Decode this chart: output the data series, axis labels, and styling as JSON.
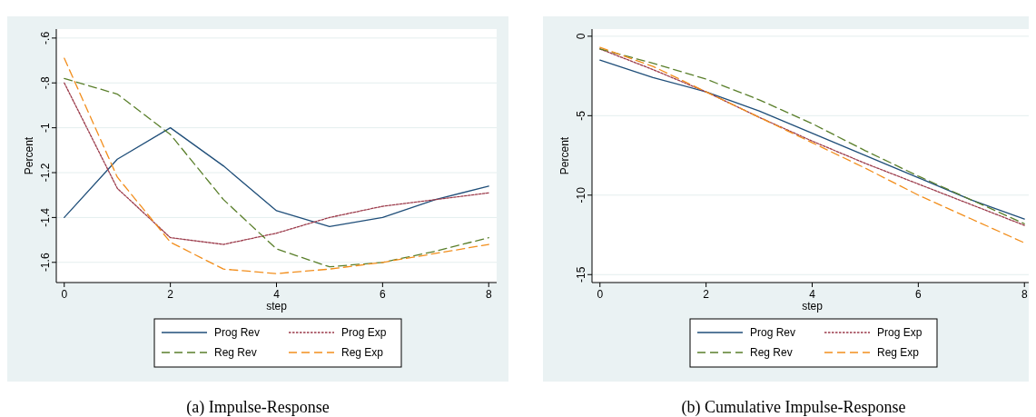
{
  "chart_data": [
    {
      "type": "line",
      "title": "(a) Impulse-Response",
      "xlabel": "step",
      "ylabel": "Percent",
      "x": [
        0,
        1,
        2,
        3,
        4,
        5,
        6,
        7,
        8
      ],
      "xlim": [
        -0.15,
        8.15
      ],
      "xticks": [
        0,
        2,
        4,
        6,
        8
      ],
      "ylim": [
        -1.69,
        -0.56
      ],
      "yticks": [
        {
          "value": -1.6,
          "label": "-1.6"
        },
        {
          "value": -1.4,
          "label": "-1.4"
        },
        {
          "value": -1.2,
          "label": "-1.2"
        },
        {
          "value": -1,
          "label": "-1"
        },
        {
          "value": -0.8,
          "label": "-.8"
        },
        {
          "value": -0.6,
          "label": "-.6"
        }
      ],
      "grid": "y",
      "legend": "bottom",
      "series": [
        {
          "name": "Prog Rev",
          "color": "#1f4e79",
          "line_style": "solid",
          "values": [
            -1.4,
            -1.14,
            -1.0,
            -1.17,
            -1.37,
            -1.44,
            -1.4,
            -1.32,
            -1.26
          ]
        },
        {
          "name": "Prog Exp",
          "color": "#9b3a4a",
          "line_style": "dotted",
          "values": [
            -0.8,
            -1.27,
            -1.49,
            -1.52,
            -1.47,
            -1.4,
            -1.35,
            -1.32,
            -1.29
          ]
        },
        {
          "name": "Reg Rev",
          "color": "#5a7f2b",
          "line_style": "dashed",
          "values": [
            -0.78,
            -0.85,
            -1.03,
            -1.32,
            -1.54,
            -1.62,
            -1.6,
            -1.55,
            -1.49
          ]
        },
        {
          "name": "Reg Exp",
          "color": "#f28e1c",
          "line_style": "dashed",
          "values": [
            -0.69,
            -1.22,
            -1.51,
            -1.63,
            -1.65,
            -1.63,
            -1.6,
            -1.56,
            -1.52
          ]
        }
      ]
    },
    {
      "type": "line",
      "title": "(b) Cumulative Impulse-Response",
      "xlabel": "step",
      "ylabel": "Percent",
      "x": [
        0,
        1,
        2,
        3,
        4,
        5,
        6,
        7,
        8
      ],
      "xlim": [
        -0.15,
        8.15
      ],
      "xticks": [
        0,
        2,
        4,
        6,
        8
      ],
      "ylim": [
        -15.5,
        0.45
      ],
      "yticks": [
        {
          "value": -15,
          "label": "-15"
        },
        {
          "value": -10,
          "label": "-10"
        },
        {
          "value": -5,
          "label": "-5"
        },
        0
      ],
      "grid": "y",
      "legend": "bottom",
      "series": [
        {
          "name": "Prog Rev",
          "color": "#1f4e79",
          "line_style": "solid",
          "values": [
            -1.5,
            -2.6,
            -3.5,
            -4.7,
            -6.1,
            -7.5,
            -8.9,
            -10.3,
            -11.5
          ]
        },
        {
          "name": "Prog Exp",
          "color": "#9b3a4a",
          "line_style": "dotted",
          "values": [
            -0.8,
            -2.1,
            -3.5,
            -5.1,
            -6.6,
            -8.0,
            -9.3,
            -10.6,
            -11.9
          ]
        },
        {
          "name": "Reg Rev",
          "color": "#5a7f2b",
          "line_style": "dashed",
          "values": [
            -0.8,
            -1.7,
            -2.7,
            -4.0,
            -5.5,
            -7.2,
            -8.8,
            -10.3,
            -11.8
          ]
        },
        {
          "name": "Reg Exp",
          "color": "#f28e1c",
          "line_style": "dashed",
          "values": [
            -0.7,
            -1.9,
            -3.5,
            -5.1,
            -6.7,
            -8.3,
            -10.0,
            -11.5,
            -13.0
          ]
        }
      ]
    }
  ]
}
